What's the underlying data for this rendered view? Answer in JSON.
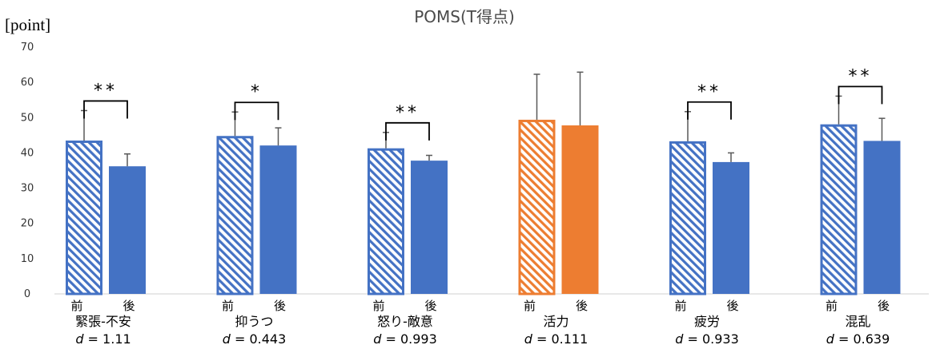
{
  "chart_data": {
    "type": "bar",
    "title": "POMS(T得点)",
    "ylabel": "[point]",
    "ylim": [
      0,
      70
    ],
    "yticks": [
      0,
      10,
      20,
      30,
      40,
      50,
      60,
      70
    ],
    "grid": false,
    "legend": "none",
    "pre_label": "前",
    "post_label": "後",
    "effect_prefix": "d",
    "categories": [
      "緊張-不安",
      "抑うつ",
      "怒り-敵意",
      "活力",
      "疲労",
      "混乱"
    ],
    "series": [
      {
        "values": [
          43.5,
          44.8,
          41.3,
          49.4,
          43.3,
          48.1
        ],
        "error": [
          8.5,
          6.8,
          4.5,
          12.9,
          8.4,
          8.0
        ],
        "style": "hatched"
      },
      {
        "values": [
          36.2,
          42.1,
          37.8,
          47.8,
          37.4,
          43.4
        ],
        "error": [
          3.5,
          5.0,
          1.5,
          15.1,
          2.6,
          6.4
        ],
        "style": "solid"
      }
    ],
    "effect_sizes": [
      "1.11",
      "0.443",
      "0.993",
      "0.111",
      "0.933",
      "0.639"
    ],
    "significance": [
      "**",
      "*",
      "**",
      "",
      "**",
      "**"
    ],
    "colors": [
      "#4472c4",
      "#4472c4",
      "#4472c4",
      "#ed7d31",
      "#4472c4",
      "#4472c4"
    ]
  }
}
